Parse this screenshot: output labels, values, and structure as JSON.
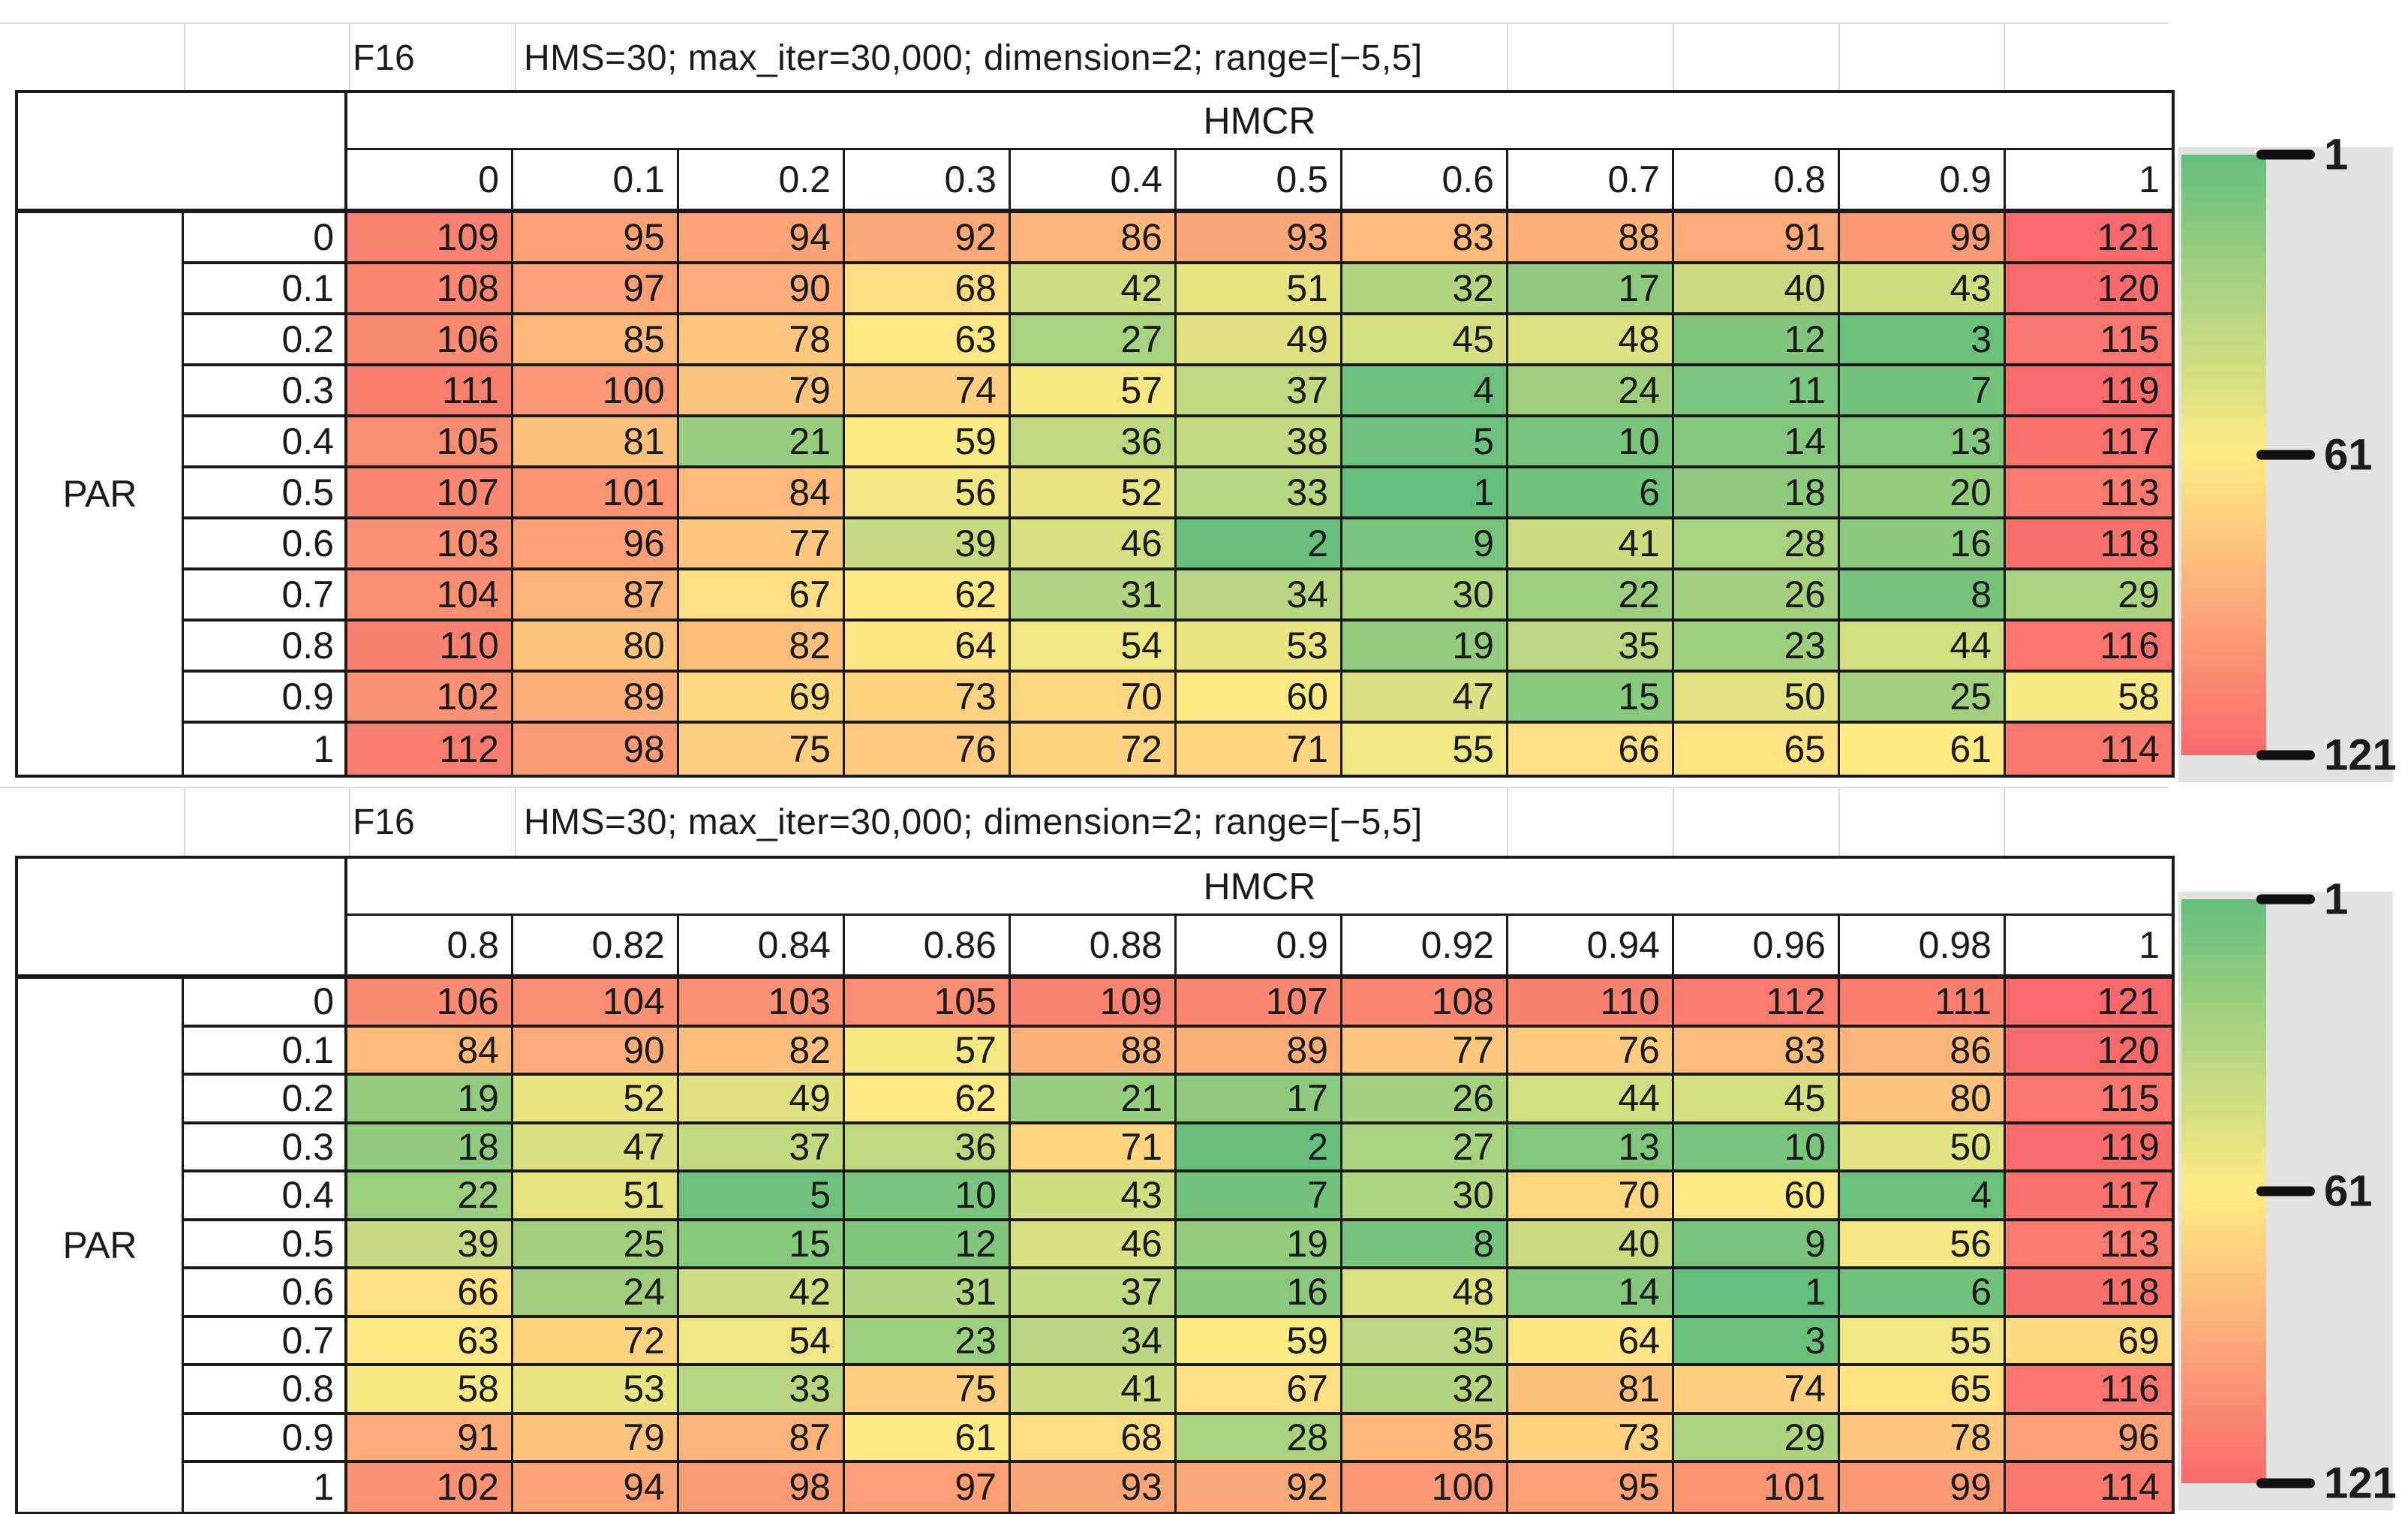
{
  "chart_data": [
    {
      "type": "heatmap",
      "title_label": "F16",
      "subtitle": "HMS=30; max_iter=30,000; dimension=2; range=[−5,5]",
      "x_axis_label": "HMCR",
      "y_axis_label": "PAR",
      "x_ticks": [
        "0",
        "0.1",
        "0.2",
        "0.3",
        "0.4",
        "0.5",
        "0.6",
        "0.7",
        "0.8",
        "0.9",
        "1"
      ],
      "y_ticks": [
        "0",
        "0.1",
        "0.2",
        "0.3",
        "0.4",
        "0.5",
        "0.6",
        "0.7",
        "0.8",
        "0.9",
        "1"
      ],
      "values": [
        [
          109,
          95,
          94,
          92,
          86,
          93,
          83,
          88,
          91,
          99,
          121
        ],
        [
          108,
          97,
          90,
          68,
          42,
          51,
          32,
          17,
          40,
          43,
          120
        ],
        [
          106,
          85,
          78,
          63,
          27,
          49,
          45,
          48,
          12,
          3,
          115
        ],
        [
          111,
          100,
          79,
          74,
          57,
          37,
          4,
          24,
          11,
          7,
          119
        ],
        [
          105,
          81,
          21,
          59,
          36,
          38,
          5,
          10,
          14,
          13,
          117
        ],
        [
          107,
          101,
          84,
          56,
          52,
          33,
          1,
          6,
          18,
          20,
          113
        ],
        [
          103,
          96,
          77,
          39,
          46,
          2,
          9,
          41,
          28,
          16,
          118
        ],
        [
          104,
          87,
          67,
          62,
          31,
          34,
          30,
          22,
          26,
          8,
          29
        ],
        [
          110,
          80,
          82,
          64,
          54,
          53,
          19,
          35,
          23,
          44,
          116
        ],
        [
          102,
          89,
          69,
          73,
          70,
          60,
          47,
          15,
          50,
          25,
          58
        ],
        [
          112,
          98,
          75,
          76,
          72,
          71,
          55,
          66,
          65,
          61,
          114
        ]
      ],
      "color_scale": {
        "min": 1,
        "mid": 61,
        "max": 121,
        "min_color": "#63BE7B",
        "mid_color": "#FFEB84",
        "max_color": "#F8696B"
      },
      "legend_ticks": [
        "1",
        "61",
        "121"
      ],
      "legend_position": "right",
      "grid": true
    },
    {
      "type": "heatmap",
      "title_label": "F16",
      "subtitle": "HMS=30; max_iter=30,000; dimension=2; range=[−5,5]",
      "x_axis_label": "HMCR",
      "y_axis_label": "PAR",
      "x_ticks": [
        "0.8",
        "0.82",
        "0.84",
        "0.86",
        "0.88",
        "0.9",
        "0.92",
        "0.94",
        "0.96",
        "0.98",
        "1"
      ],
      "y_ticks": [
        "0",
        "0.1",
        "0.2",
        "0.3",
        "0.4",
        "0.5",
        "0.6",
        "0.7",
        "0.8",
        "0.9",
        "1"
      ],
      "values": [
        [
          106,
          104,
          103,
          105,
          109,
          107,
          108,
          110,
          112,
          111,
          121
        ],
        [
          84,
          90,
          82,
          57,
          88,
          89,
          77,
          76,
          83,
          86,
          120
        ],
        [
          19,
          52,
          49,
          62,
          21,
          17,
          26,
          44,
          45,
          80,
          115
        ],
        [
          18,
          47,
          37,
          36,
          71,
          2,
          27,
          13,
          10,
          50,
          119
        ],
        [
          22,
          51,
          5,
          10,
          43,
          7,
          30,
          70,
          60,
          4,
          117
        ],
        [
          39,
          25,
          15,
          12,
          46,
          19,
          8,
          40,
          9,
          56,
          113
        ],
        [
          66,
          24,
          42,
          31,
          37,
          16,
          48,
          14,
          1,
          6,
          118
        ],
        [
          63,
          72,
          54,
          23,
          34,
          59,
          35,
          64,
          3,
          55,
          69
        ],
        [
          58,
          53,
          33,
          75,
          41,
          67,
          32,
          81,
          74,
          65,
          116
        ],
        [
          91,
          79,
          87,
          61,
          68,
          28,
          85,
          73,
          29,
          78,
          96
        ],
        [
          102,
          94,
          98,
          97,
          93,
          92,
          100,
          95,
          101,
          99,
          114
        ]
      ],
      "color_scale": {
        "min": 1,
        "mid": 61,
        "max": 121,
        "min_color": "#63BE7B",
        "mid_color": "#FFEB84",
        "max_color": "#F8696B"
      },
      "legend_ticks": [
        "1",
        "61",
        "121"
      ],
      "legend_position": "right",
      "grid": true
    }
  ]
}
